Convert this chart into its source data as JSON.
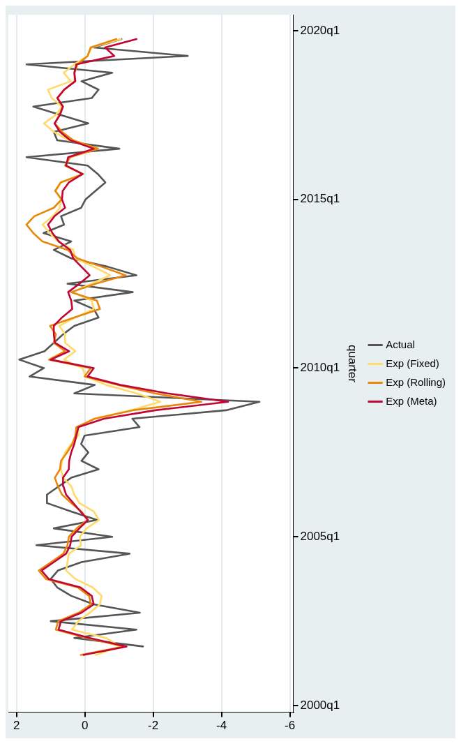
{
  "chart_data": {
    "type": "line",
    "ylabel": "quarter",
    "orientation": "horizontal",
    "x": [
      "2001-07",
      "2001-10",
      "2002-01",
      "2002-04",
      "2002-07",
      "2002-10",
      "2003-01",
      "2003-04",
      "2003-07",
      "2003-10",
      "2004-01",
      "2004-04",
      "2004-07",
      "2004-10",
      "2005-01",
      "2005-04",
      "2005-07",
      "2005-10",
      "2006-01",
      "2006-04",
      "2006-07",
      "2006-10",
      "2007-01",
      "2007-04",
      "2007-07",
      "2007-10",
      "2008-01",
      "2008-04",
      "2008-07",
      "2008-10",
      "2009-01",
      "2009-04",
      "2009-07",
      "2009-10",
      "2010-01",
      "2010-04",
      "2010-07",
      "2010-10",
      "2011-01",
      "2011-04",
      "2011-07",
      "2011-10",
      "2012-01",
      "2012-04",
      "2012-07",
      "2012-10",
      "2013-01",
      "2013-04",
      "2013-07",
      "2013-10",
      "2014-01",
      "2014-04",
      "2014-07",
      "2014-10",
      "2015-01",
      "2015-04",
      "2015-07",
      "2015-10",
      "2016-01",
      "2016-04",
      "2016-07",
      "2016-10",
      "2017-01",
      "2017-04",
      "2017-07",
      "2017-10",
      "2018-01",
      "2018-04",
      "2018-07",
      "2018-10",
      "2019-01",
      "2019-04",
      "2019-07",
      "2019-10"
    ],
    "series": [
      {
        "name": "Actual",
        "color": "#555555",
        "values": [
          null,
          -1.7,
          0.31,
          -1.51,
          1.0,
          -1.61,
          -0.26,
          0.4,
          0.81,
          1.0,
          0.79,
          0.1,
          -1.31,
          1.42,
          -0.8,
          0.91,
          -0.35,
          0.4,
          1.11,
          1.11,
          0.76,
          0.4,
          -0.4,
          0.1,
          -0.1,
          0.11,
          0.01,
          -1.6,
          -1.39,
          -4.13,
          -5.11,
          0.31,
          -0.29,
          1.62,
          1.2,
          1.92,
          1.18,
          0.91,
          0.64,
          0.31,
          -0.4,
          -0.26,
          0.31,
          -1.4,
          0.51,
          -1.51,
          -0.68,
          0.4,
          0.91,
          0.4,
          1.21,
          0.61,
          0.7,
          0.11,
          -0.02,
          -0.31,
          -0.6,
          -0.38,
          -0.08,
          1.71,
          -1.01,
          0.81,
          0.91,
          -0.1,
          0.71,
          1.51,
          -0.2,
          -0.4,
          0.1,
          -0.8,
          1.71,
          -3.01,
          -0.26,
          -1.07
        ]
      },
      {
        "name": "Exp (Fixed)",
        "color": "#ffdb6b",
        "values": [
          -0.32,
          -1.04,
          -0.62,
          0.38,
          0.19,
          -0.14,
          -0.44,
          -0.49,
          -0.23,
          0.28,
          0.55,
          0.51,
          0.47,
          0.11,
          0.15,
          -0.05,
          -0.41,
          -0.26,
          0.16,
          0.31,
          0.4,
          0.64,
          0.7,
          0.67,
          0.58,
          0.4,
          0.19,
          0.19,
          -0.26,
          -1.34,
          -2.21,
          -1.52,
          -0.62,
          -0.02,
          0.07,
          0.61,
          0.28,
          0.58,
          0.58,
          0.75,
          0.28,
          -0.26,
          -0.2,
          0.37,
          -0.2,
          -0.74,
          -0.26,
          0.28,
          0.34,
          0.79,
          1.03,
          1.24,
          0.94,
          0.73,
          0.7,
          0.85,
          0.7,
          0.07,
          0.55,
          0.47,
          -0.38,
          0.46,
          0.91,
          1.2,
          0.85,
          0.67,
          0.97,
          1.08,
          0.41,
          0.62,
          0.31,
          -0.08,
          -0.2,
          -1.05
        ]
      },
      {
        "name": "Exp (Rolling)",
        "color": "#e8870e",
        "values": [
          0.12,
          -1.14,
          -0.06,
          0.85,
          0.78,
          0.18,
          -0.18,
          -0.12,
          0.21,
          1.14,
          1.35,
          0.99,
          0.63,
          0.51,
          0.47,
          0.24,
          -0.08,
          0.1,
          0.4,
          0.67,
          0.79,
          0.88,
          0.73,
          0.7,
          0.52,
          0.37,
          0.28,
          0.25,
          -0.29,
          -1.4,
          -3.41,
          -2.06,
          -0.98,
          0.01,
          -0.17,
          1.05,
          0.58,
          0.91,
          0.85,
          1.02,
          0.31,
          -0.44,
          -0.35,
          0.4,
          -0.32,
          -1.19,
          -0.5,
          0.22,
          0.5,
          1.24,
          1.51,
          1.71,
          1.48,
          0.91,
          0.68,
          0.87,
          0.71,
          0.05,
          0.58,
          0.43,
          -0.39,
          0.34,
          0.67,
          0.88,
          0.75,
          0.65,
          0.8,
          0.6,
          0.3,
          0.3,
          0.22,
          -0.08,
          -0.17,
          -0.92
        ]
      },
      {
        "name": "Exp (Meta)",
        "color": "#c10534",
        "values": [
          0.04,
          -1.22,
          -0.14,
          0.77,
          0.7,
          0.1,
          -0.26,
          -0.2,
          0.13,
          1.06,
          1.27,
          0.91,
          0.55,
          0.43,
          0.39,
          0.16,
          -0.09,
          0.13,
          0.34,
          0.55,
          0.63,
          0.64,
          0.47,
          0.46,
          0.4,
          0.31,
          0.25,
          0.19,
          -0.56,
          -2.06,
          -4.19,
          -2.42,
          -1.04,
          -0.08,
          -0.26,
          1.0,
          0.46,
          0.88,
          0.91,
          0.91,
          0.67,
          0.37,
          0.4,
          0.49,
          0.16,
          -0.14,
          0.1,
          0.34,
          0.43,
          0.76,
          0.95,
          1.08,
          0.89,
          0.58,
          0.67,
          0.65,
          0.47,
          0.07,
          0.55,
          0.49,
          -0.26,
          0.43,
          0.73,
          0.89,
          0.73,
          0.64,
          0.81,
          0.61,
          0.28,
          0.31,
          0.25,
          -0.86,
          -0.59,
          -1.51
        ]
      }
    ],
    "ylim": [
      "1999-10-20",
      "2020-06-20"
    ],
    "yticks": [
      {
        "value": "2000-01",
        "label": "2000q1"
      },
      {
        "value": "2005-01",
        "label": "2005q1"
      },
      {
        "value": "2010-01",
        "label": "2010q1"
      },
      {
        "value": "2015-01",
        "label": "2015q1"
      },
      {
        "value": "2020-01",
        "label": "2020q1"
      }
    ],
    "xlim": [
      2.24,
      -6.1
    ],
    "xticks": [
      2,
      0,
      -2,
      -4,
      -6
    ],
    "grid": "x",
    "legend": "right",
    "line_style": "solid",
    "marker": "none"
  }
}
